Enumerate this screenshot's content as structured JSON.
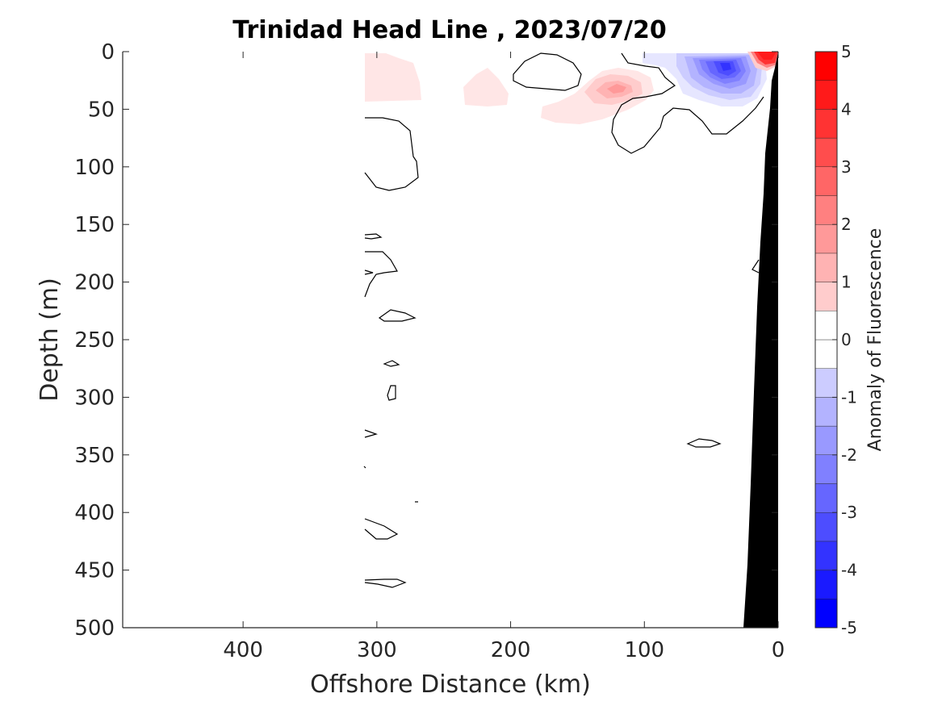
{
  "chart_data": {
    "type": "heatmap",
    "title": "Trinidad Head Line , 2023/07/20",
    "xlabel": "Offshore Distance (km)",
    "ylabel": "Depth (m)",
    "x_axis_reversed": true,
    "y_axis_reversed": true,
    "xlim": [
      490,
      0
    ],
    "ylim": [
      0,
      500
    ],
    "xticks": [
      400,
      300,
      200,
      100,
      0
    ],
    "yticks": [
      0,
      50,
      100,
      150,
      200,
      250,
      300,
      350,
      400,
      450,
      500
    ],
    "colorbar": {
      "label": "Anomaly of Fluorescence",
      "range": [
        -5,
        5
      ],
      "ticks": [
        5,
        4,
        3,
        2,
        1,
        0,
        -1,
        -2,
        -3,
        -4,
        -5
      ],
      "levels": [
        -5,
        -4.5,
        -4,
        -3.5,
        -3,
        -2.5,
        -2,
        -1.5,
        -1,
        -0.5,
        0,
        0.5,
        1,
        1.5,
        2,
        2.5,
        3,
        3.5,
        4,
        4.5,
        5
      ],
      "colors": [
        "#0000ff",
        "#1a1aff",
        "#3333ff",
        "#4d4dff",
        "#6666ff",
        "#8080ff",
        "#9999ff",
        "#b3b3ff",
        "#ccccff",
        "#e6e6ff",
        "#ffffff",
        "#ffffff",
        "#ffe6e6",
        "#ffcccc",
        "#ffb3b3",
        "#ff9999",
        "#ff8080",
        "#ff6666",
        "#ff4d4d",
        "#ff3333",
        "#ff1a1a",
        "#ff0000"
      ]
    },
    "anomaly_patches": [
      {
        "feature": "positive near-surface patch",
        "x_range": [
          312,
          268
        ],
        "depth_range": [
          0,
          42
        ],
        "max_anomaly": 0.8
      },
      {
        "feature": "positive near-surface patch",
        "x_range": [
          237,
          202
        ],
        "depth_range": [
          14,
          46
        ],
        "max_anomaly": 0.8
      },
      {
        "feature": "positive subsurface maximum",
        "x_range": [
          158,
          100
        ],
        "depth_range": [
          14,
          62
        ],
        "max_anomaly": 2.2,
        "peak_at": [
          120,
          30
        ]
      },
      {
        "feature": "negative surface minimum",
        "x_range": [
          100,
          15
        ],
        "depth_range": [
          0,
          48
        ],
        "min_anomaly": -3.2,
        "peak_at": [
          40,
          12
        ]
      },
      {
        "feature": "positive coastal surface maximum",
        "x_range": [
          22,
          0
        ],
        "depth_range": [
          0,
          16
        ],
        "max_anomaly": 4.5,
        "peak_at": [
          10,
          3
        ]
      }
    ],
    "bathymetry": {
      "color": "#000000",
      "shelf_edge_x": 26
    }
  },
  "colors": {
    "positive": "#ff0000",
    "negative": "#0000ff",
    "zero": "#ffffff",
    "contour": "#000000",
    "land": "#000000"
  }
}
